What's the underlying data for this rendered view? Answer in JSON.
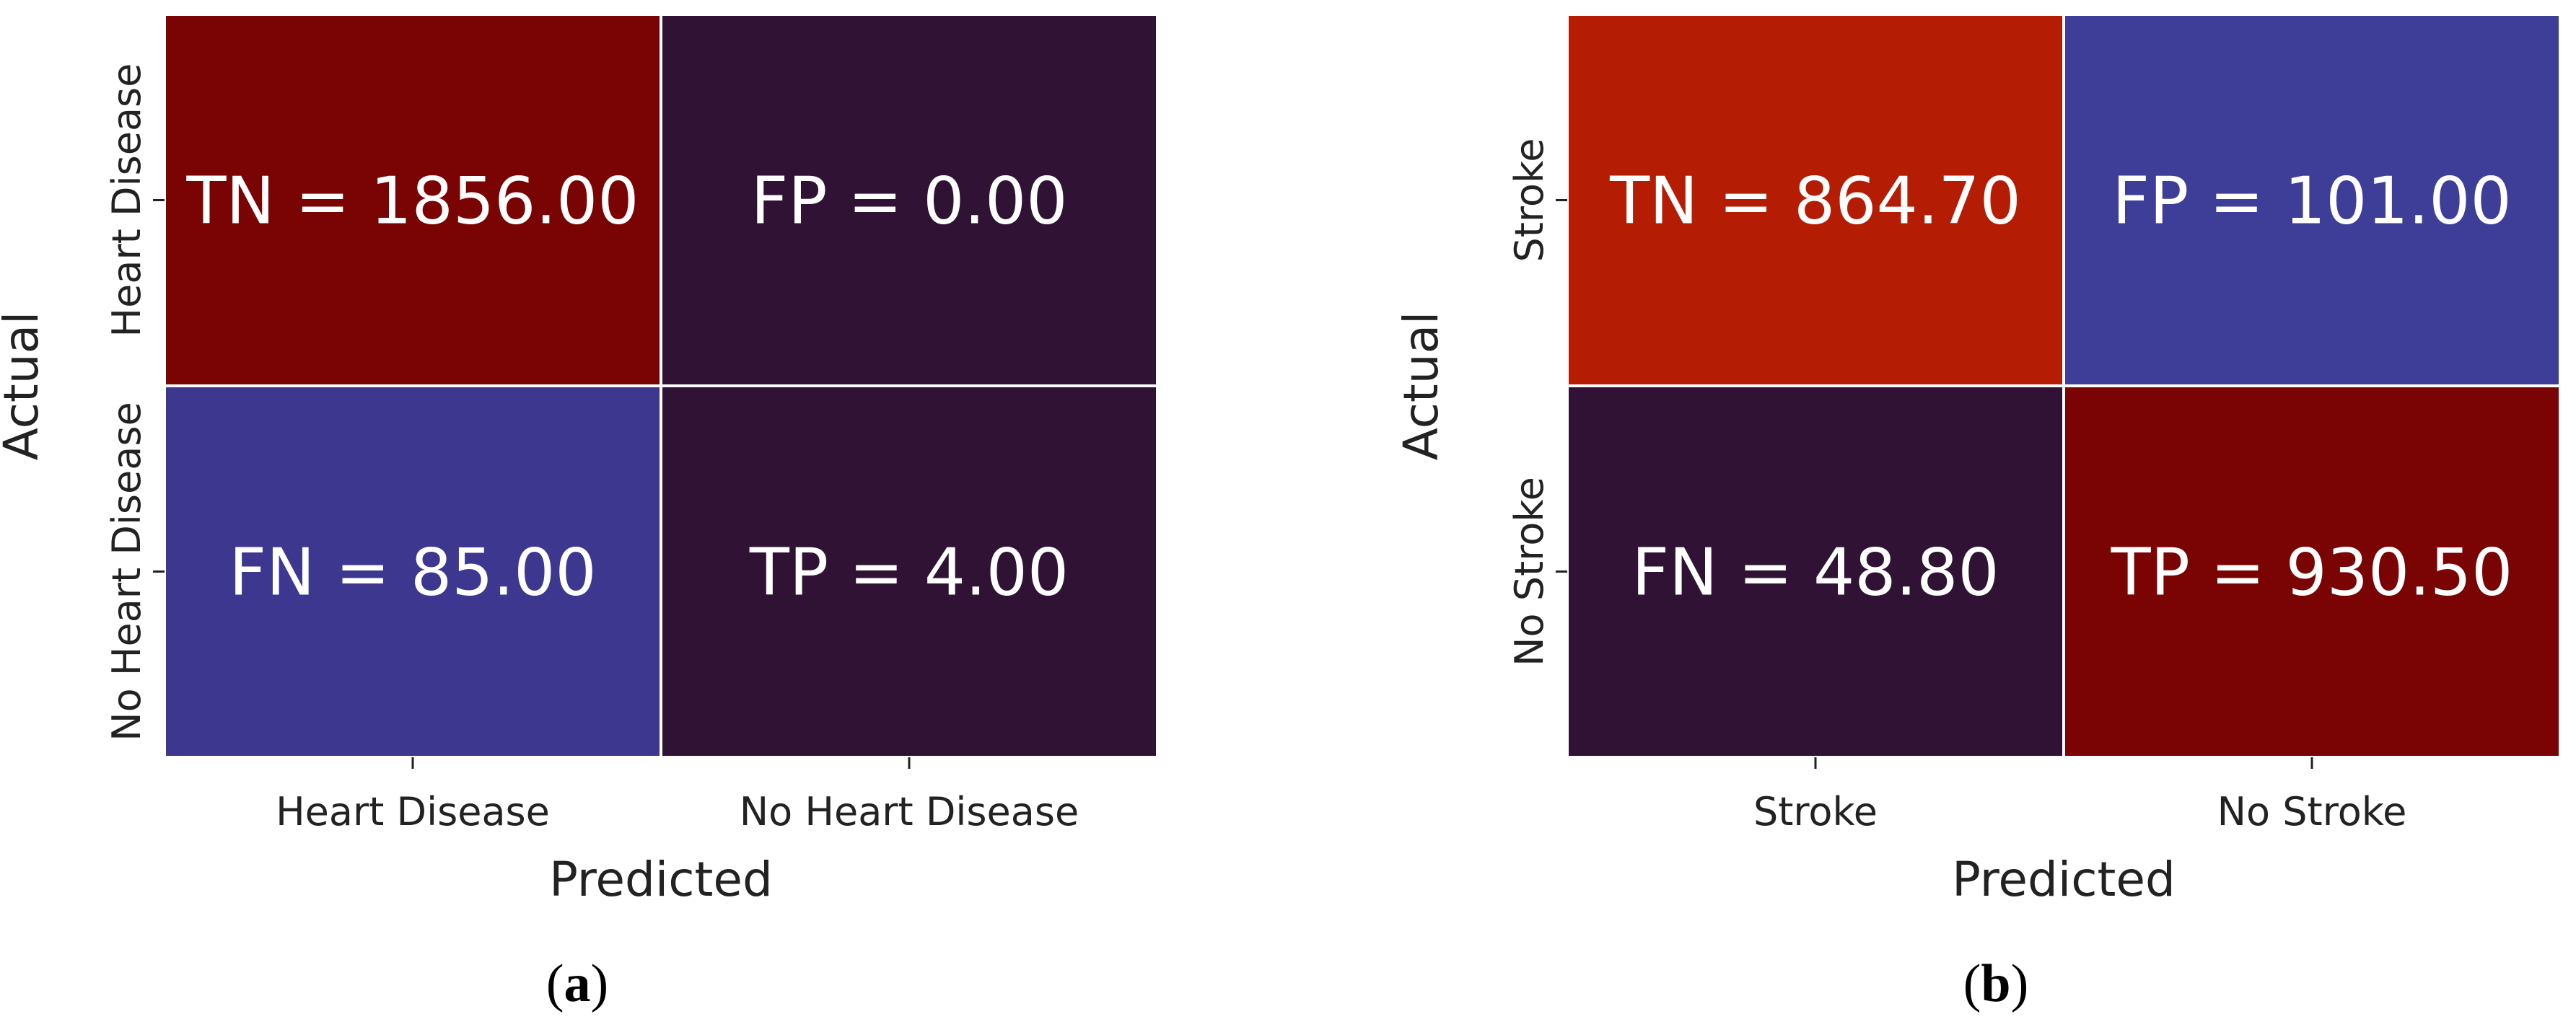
{
  "chart_data": [
    {
      "type": "heatmap",
      "panel": "a",
      "caption": {
        "open": "(",
        "letter": "a",
        "close": ")"
      },
      "xlabel": "Predicted",
      "ylabel": "Actual",
      "x_categories": [
        "Heart Disease",
        "No Heart Disease"
      ],
      "y_categories": [
        "Heart Disease",
        "No Heart Disease"
      ],
      "cells": [
        {
          "row": 0,
          "col": 0,
          "label": "TN = 1856.00",
          "value": 1856.0,
          "color": "#7a0403"
        },
        {
          "row": 0,
          "col": 1,
          "label": "FP = 0.00",
          "value": 0.0,
          "color": "#301235"
        },
        {
          "row": 1,
          "col": 0,
          "label": "FN = 85.00",
          "value": 85.0,
          "color": "#3e378f"
        },
        {
          "row": 1,
          "col": 1,
          "label": "TP = 4.00",
          "value": 4.0,
          "color": "#301235"
        }
      ]
    },
    {
      "type": "heatmap",
      "panel": "b",
      "caption": {
        "open": "(",
        "letter": "b",
        "close": ")"
      },
      "xlabel": "Predicted",
      "ylabel": "Actual",
      "x_categories": [
        "Stroke",
        "No Stroke"
      ],
      "y_categories": [
        "Stroke",
        "No Stroke"
      ],
      "cells": [
        {
          "row": 0,
          "col": 0,
          "label": "TN = 864.70",
          "value": 864.7,
          "color": "#b41c03"
        },
        {
          "row": 0,
          "col": 1,
          "label": "FP = 101.00",
          "value": 101.0,
          "color": "#3e3e99"
        },
        {
          "row": 1,
          "col": 0,
          "label": "FN = 48.80",
          "value": 48.8,
          "color": "#301235"
        },
        {
          "row": 1,
          "col": 1,
          "label": "TP = 930.50",
          "value": 930.5,
          "color": "#7a0403"
        }
      ]
    }
  ]
}
